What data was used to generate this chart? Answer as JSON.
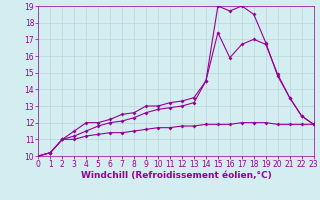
{
  "line1_x": [
    0,
    1,
    2,
    3,
    4,
    5,
    6,
    7,
    8,
    9,
    10,
    11,
    12,
    13,
    14,
    15,
    16,
    17,
    18,
    19,
    20,
    21,
    22,
    23
  ],
  "line1_y": [
    10.0,
    10.2,
    11.0,
    11.5,
    12.0,
    12.0,
    12.2,
    12.5,
    12.6,
    13.0,
    13.0,
    13.2,
    13.3,
    13.5,
    14.5,
    19.0,
    18.7,
    19.0,
    18.5,
    16.8,
    14.8,
    13.5,
    12.4,
    11.9
  ],
  "line2_x": [
    0,
    1,
    2,
    3,
    4,
    5,
    6,
    7,
    8,
    9,
    10,
    11,
    12,
    13,
    14,
    15,
    16,
    17,
    18,
    19,
    20,
    21,
    22,
    23
  ],
  "line2_y": [
    10.0,
    10.2,
    11.0,
    11.2,
    11.5,
    11.8,
    12.0,
    12.1,
    12.3,
    12.6,
    12.8,
    12.9,
    13.0,
    13.2,
    14.5,
    17.4,
    15.9,
    16.7,
    17.0,
    16.7,
    14.9,
    13.5,
    12.4,
    11.9
  ],
  "line3_x": [
    0,
    1,
    2,
    3,
    4,
    5,
    6,
    7,
    8,
    9,
    10,
    11,
    12,
    13,
    14,
    15,
    16,
    17,
    18,
    19,
    20,
    21,
    22,
    23
  ],
  "line3_y": [
    10.0,
    10.2,
    11.0,
    11.0,
    11.2,
    11.3,
    11.4,
    11.4,
    11.5,
    11.6,
    11.7,
    11.7,
    11.8,
    11.8,
    11.9,
    11.9,
    11.9,
    12.0,
    12.0,
    12.0,
    11.9,
    11.9,
    11.9,
    11.9
  ],
  "line_color": "#990099",
  "marker": "D",
  "markersize": 2.0,
  "linewidth": 0.8,
  "xlabel": "Windchill (Refroidissement éolien,°C)",
  "xlim": [
    0,
    23
  ],
  "ylim": [
    10,
    19
  ],
  "xticks": [
    0,
    1,
    2,
    3,
    4,
    5,
    6,
    7,
    8,
    9,
    10,
    11,
    12,
    13,
    14,
    15,
    16,
    17,
    18,
    19,
    20,
    21,
    22,
    23
  ],
  "yticks": [
    10,
    11,
    12,
    13,
    14,
    15,
    16,
    17,
    18,
    19
  ],
  "bg_color": "#d4edf0",
  "grid_color": "#b8d8dc",
  "tick_color": "#990099",
  "xlabel_color": "#990099",
  "xlabel_fontsize": 6.5,
  "tick_fontsize": 5.5
}
